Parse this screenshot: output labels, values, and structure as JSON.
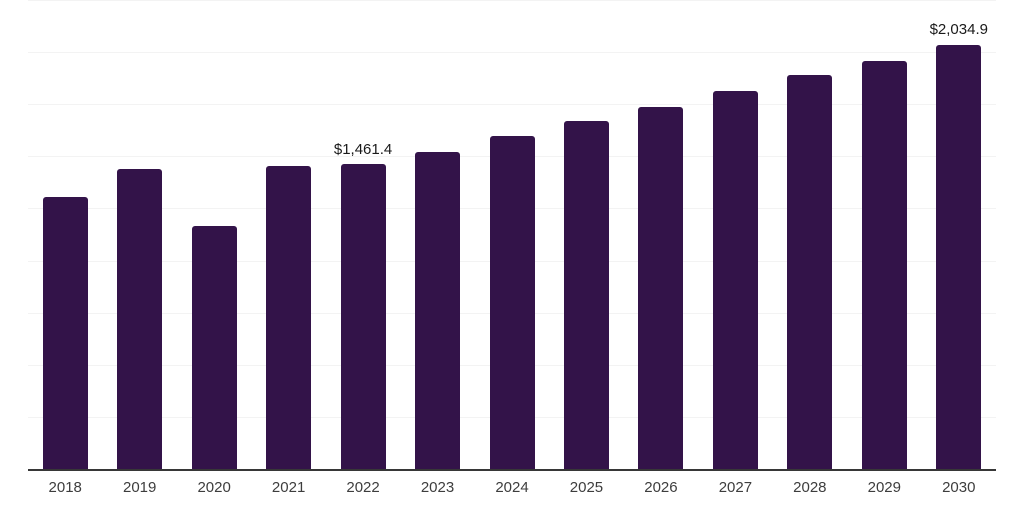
{
  "chart_data": {
    "type": "bar",
    "title": "",
    "xlabel": "",
    "ylabel": "",
    "categories": [
      "2018",
      "2019",
      "2020",
      "2021",
      "2022",
      "2023",
      "2024",
      "2025",
      "2026",
      "2027",
      "2028",
      "2029",
      "2030"
    ],
    "values": [
      1307,
      1437,
      1167,
      1455,
      1461.4,
      1520,
      1596,
      1670,
      1737,
      1814,
      1890,
      1959,
      2034.9
    ],
    "point_labels": [
      "",
      "",
      "",
      "",
      "$1,461.4",
      "",
      "",
      "",
      "",
      "",
      "",
      "",
      "$2,034.9"
    ],
    "ylim": [
      0,
      2250
    ],
    "grid_step": 250,
    "grid": true,
    "legend": false,
    "y_tick_labels_visible": false,
    "bar_color": "#331349",
    "gridline_color": "#f3f3f3",
    "axis_line_color": "#373737",
    "value_label_color": "#1a1a1a",
    "tick_label_color": "#3d3d3d"
  }
}
